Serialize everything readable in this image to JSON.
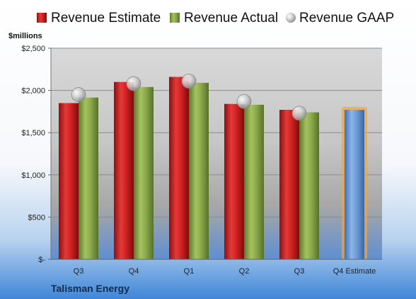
{
  "chart_data": {
    "type": "bar",
    "categories": [
      "Q3",
      "Q4",
      "Q1",
      "Q2",
      "Q3",
      "Q4 Estimate"
    ],
    "series": [
      {
        "name": "Revenue Estimate",
        "values": [
          1850,
          2100,
          2160,
          1840,
          1770,
          1770
        ],
        "color": "#cc1f1f"
      },
      {
        "name": "Revenue Actual",
        "values": [
          1915,
          2040,
          2090,
          1830,
          1740,
          null
        ],
        "color": "#8aa64a"
      },
      {
        "name": "Revenue GAAP",
        "type": "scatter",
        "values": [
          1950,
          2080,
          2110,
          1870,
          1730,
          null
        ],
        "color": "#b8b8b8"
      }
    ],
    "highlight": {
      "category_index": 5,
      "color": "#6f9dd6",
      "glow": "#f3a33a"
    },
    "ylim": [
      0,
      2500
    ],
    "y_ticks": [
      0,
      500,
      1000,
      1500,
      2000,
      2500
    ],
    "y_tick_labels": [
      "$-",
      "$500",
      "$1,000",
      "$1,500",
      "$2,000",
      "$2,500"
    ],
    "ylabel": "$millions",
    "grid": true,
    "legend_position": "top"
  },
  "company": "Talisman Energy"
}
